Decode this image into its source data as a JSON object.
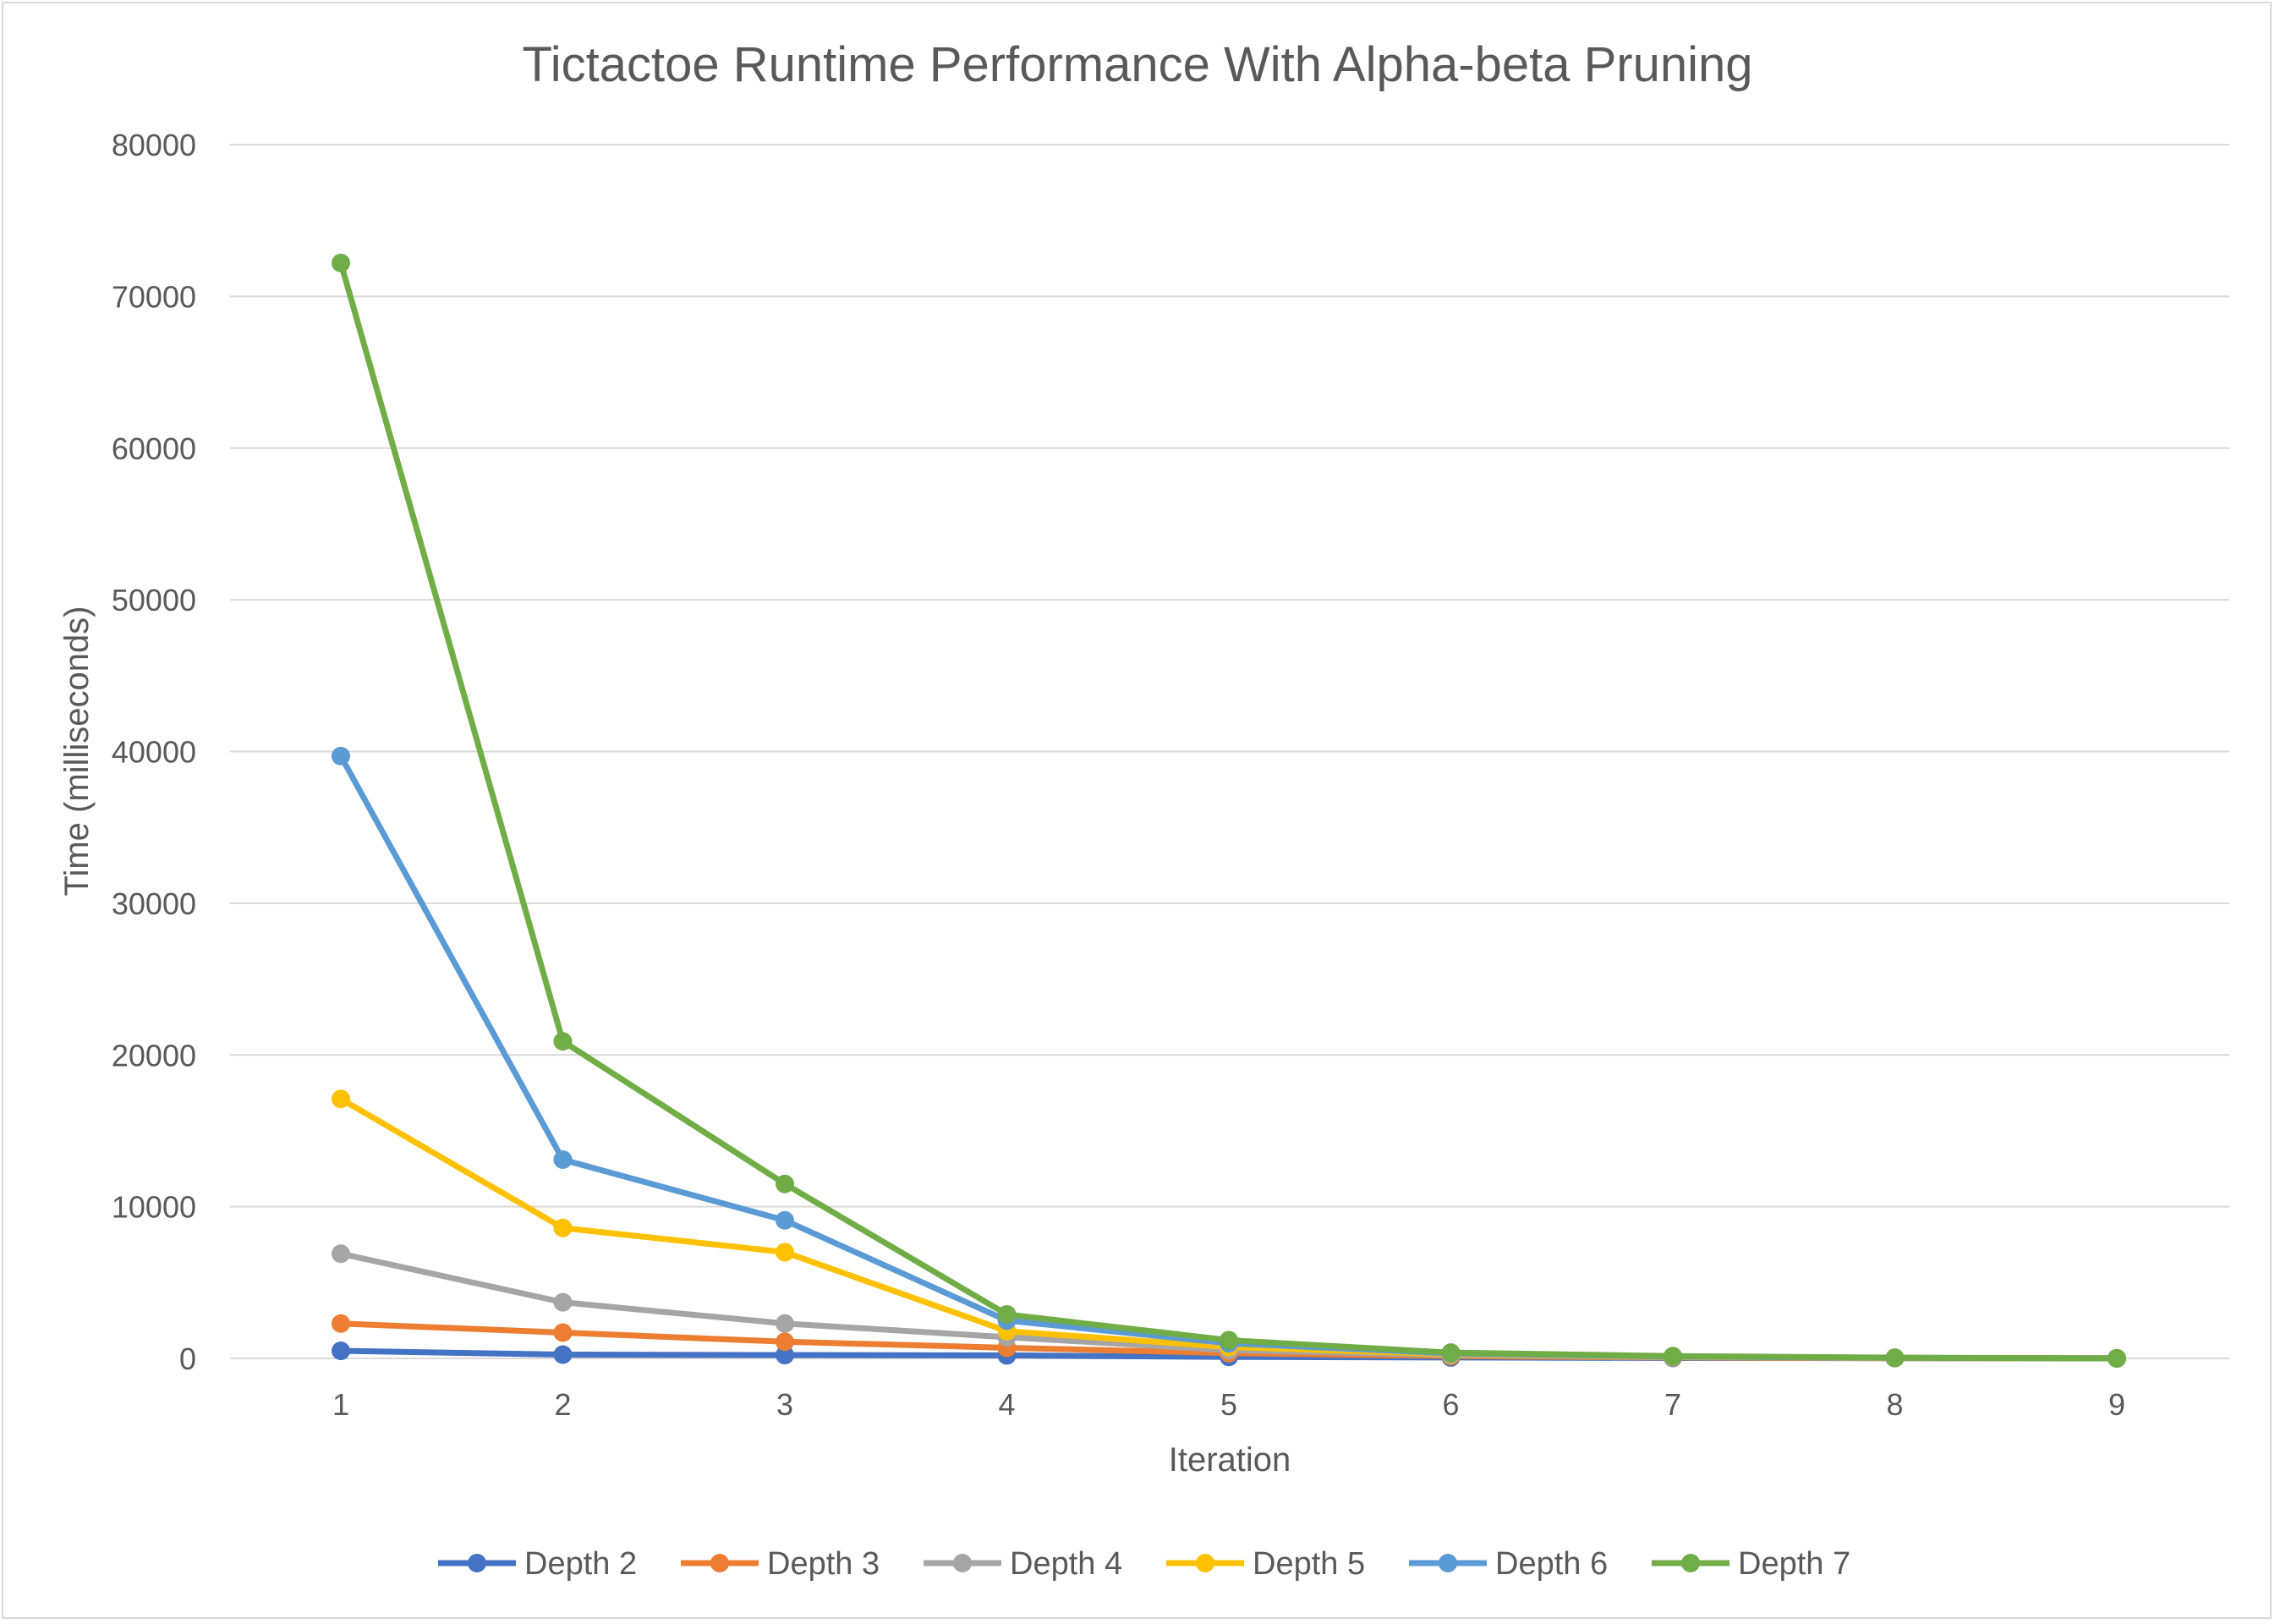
{
  "chart_data": {
    "type": "line",
    "title": "Tictactoe Runtime Performance With Alpha-beta Pruning",
    "xlabel": "Iteration",
    "ylabel": "Time (milliseconds)",
    "ylim": [
      0,
      80000
    ],
    "yticks": [
      0,
      10000,
      20000,
      30000,
      40000,
      50000,
      60000,
      70000,
      80000
    ],
    "x": [
      1,
      2,
      3,
      4,
      5,
      6,
      7,
      8,
      9
    ],
    "grid": true,
    "legend_position": "bottom",
    "series": [
      {
        "name": "Depth 2",
        "color": "#4472C4",
        "values": [
          500,
          250,
          220,
          200,
          100,
          60,
          30,
          15,
          5
        ]
      },
      {
        "name": "Depth 3",
        "color": "#ED7D31",
        "values": [
          2300,
          1700,
          1100,
          700,
          350,
          150,
          60,
          20,
          5
        ]
      },
      {
        "name": "Depth 4",
        "color": "#A5A5A5",
        "values": [
          6900,
          3700,
          2300,
          1400,
          550,
          230,
          80,
          25,
          5
        ]
      },
      {
        "name": "Depth 5",
        "color": "#FFC000",
        "values": [
          17100,
          8600,
          7000,
          1800,
          750,
          280,
          100,
          30,
          5
        ]
      },
      {
        "name": "Depth 6",
        "color": "#5B9BD5",
        "values": [
          39700,
          13100,
          9100,
          2500,
          1000,
          330,
          120,
          40,
          5
        ]
      },
      {
        "name": "Depth 7",
        "color": "#70AD47",
        "values": [
          72200,
          20900,
          11500,
          2900,
          1200,
          380,
          150,
          50,
          10
        ]
      }
    ]
  }
}
